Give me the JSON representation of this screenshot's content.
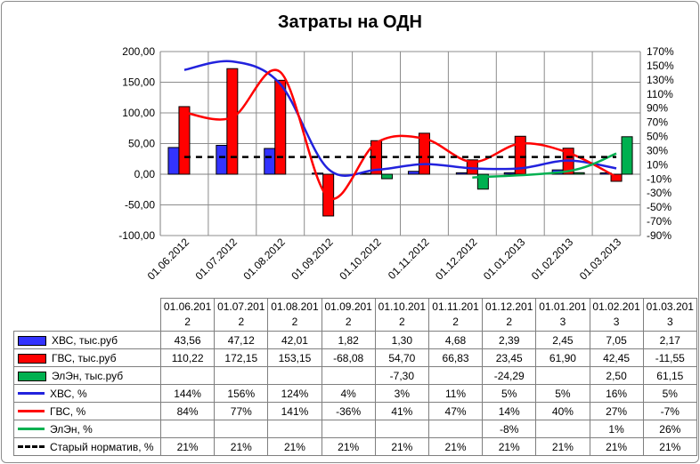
{
  "chart_data": {
    "type": "bar",
    "title": "Затраты на ОДН",
    "categories": [
      "01.06.2012",
      "01.07.2012",
      "01.08.2012",
      "01.09.2012",
      "01.10.2012",
      "01.11.2012",
      "01.12.2012",
      "01.01.2013",
      "01.02.2013",
      "01.03.2013"
    ],
    "table_headers": [
      [
        "01.06.201",
        "2"
      ],
      [
        "01.07.201",
        "2"
      ],
      [
        "01.08.201",
        "2"
      ],
      [
        "01.09.201",
        "2"
      ],
      [
        "01.10.201",
        "2"
      ],
      [
        "01.11.201",
        "2"
      ],
      [
        "01.12.201",
        "2"
      ],
      [
        "01.01.201",
        "3"
      ],
      [
        "01.02.201",
        "3"
      ],
      [
        "01.03.201",
        "3"
      ]
    ],
    "y_left": {
      "min": -100,
      "max": 200,
      "step": 50,
      "ticks": [
        "-100,00",
        "-50,00",
        "0,00",
        "50,00",
        "100,00",
        "150,00",
        "200,00"
      ]
    },
    "y_right": {
      "min": -90,
      "max": 170,
      "step": 20,
      "ticks": [
        "-90%",
        "-70%",
        "-50%",
        "-30%",
        "-10%",
        "10%",
        "30%",
        "50%",
        "70%",
        "90%",
        "110%",
        "130%",
        "150%",
        "170%"
      ]
    },
    "grid": true,
    "series": [
      {
        "name": "ХВС, тыс.руб",
        "kind": "bar",
        "axis": "left",
        "color": "#3333ff",
        "values": [
          43.56,
          47.12,
          42.01,
          1.82,
          1.3,
          4.68,
          2.39,
          2.45,
          7.05,
          2.17
        ],
        "labels": [
          "43,56",
          "47,12",
          "42,01",
          "1,82",
          "1,30",
          "4,68",
          "2,39",
          "2,45",
          "7,05",
          "2,17"
        ]
      },
      {
        "name": "ГВС, тыс.руб",
        "kind": "bar",
        "axis": "left",
        "color": "#ff0000",
        "values": [
          110.22,
          172.15,
          153.15,
          -68.08,
          54.7,
          66.83,
          23.45,
          61.9,
          42.45,
          -11.55
        ],
        "labels": [
          "110,22",
          "172,15",
          "153,15",
          "-68,08",
          "54,70",
          "66,83",
          "23,45",
          "61,90",
          "42,45",
          "-11,55"
        ]
      },
      {
        "name": "ЭлЭн, тыс.руб",
        "kind": "bar",
        "axis": "left",
        "color": "#00b050",
        "values": [
          null,
          null,
          null,
          null,
          -7.3,
          null,
          -24.29,
          null,
          2.5,
          61.15
        ],
        "labels": [
          "",
          "",
          "",
          "",
          "-7,30",
          "",
          "-24,29",
          "",
          "2,50",
          "61,15"
        ]
      },
      {
        "name": "ХВС, %",
        "kind": "line",
        "axis": "right",
        "color": "#2222dd",
        "values": [
          144,
          156,
          124,
          4,
          3,
          11,
          5,
          5,
          16,
          5
        ],
        "labels": [
          "144%",
          "156%",
          "124%",
          "4%",
          "3%",
          "11%",
          "5%",
          "5%",
          "16%",
          "5%"
        ]
      },
      {
        "name": "ГВС, %",
        "kind": "line",
        "axis": "right",
        "color": "#ff0000",
        "values": [
          84,
          77,
          141,
          -36,
          41,
          47,
          14,
          40,
          27,
          -7
        ],
        "labels": [
          "84%",
          "77%",
          "141%",
          "-36%",
          "41%",
          "47%",
          "14%",
          "40%",
          "27%",
          "-7%"
        ]
      },
      {
        "name": "ЭлЭн, %",
        "kind": "line",
        "axis": "right",
        "color": "#00b050",
        "values": [
          null,
          null,
          null,
          null,
          null,
          null,
          -8,
          null,
          1,
          26
        ],
        "labels": [
          "",
          "",
          "",
          "",
          "",
          "",
          "-8%",
          "",
          "1%",
          "26%"
        ]
      },
      {
        "name": "Старый норматив, %",
        "kind": "dashed",
        "axis": "right",
        "color": "#000000",
        "values": [
          21,
          21,
          21,
          21,
          21,
          21,
          21,
          21,
          21,
          21
        ],
        "labels": [
          "21%",
          "21%",
          "21%",
          "21%",
          "21%",
          "21%",
          "21%",
          "21%",
          "21%",
          "21%"
        ]
      }
    ]
  }
}
